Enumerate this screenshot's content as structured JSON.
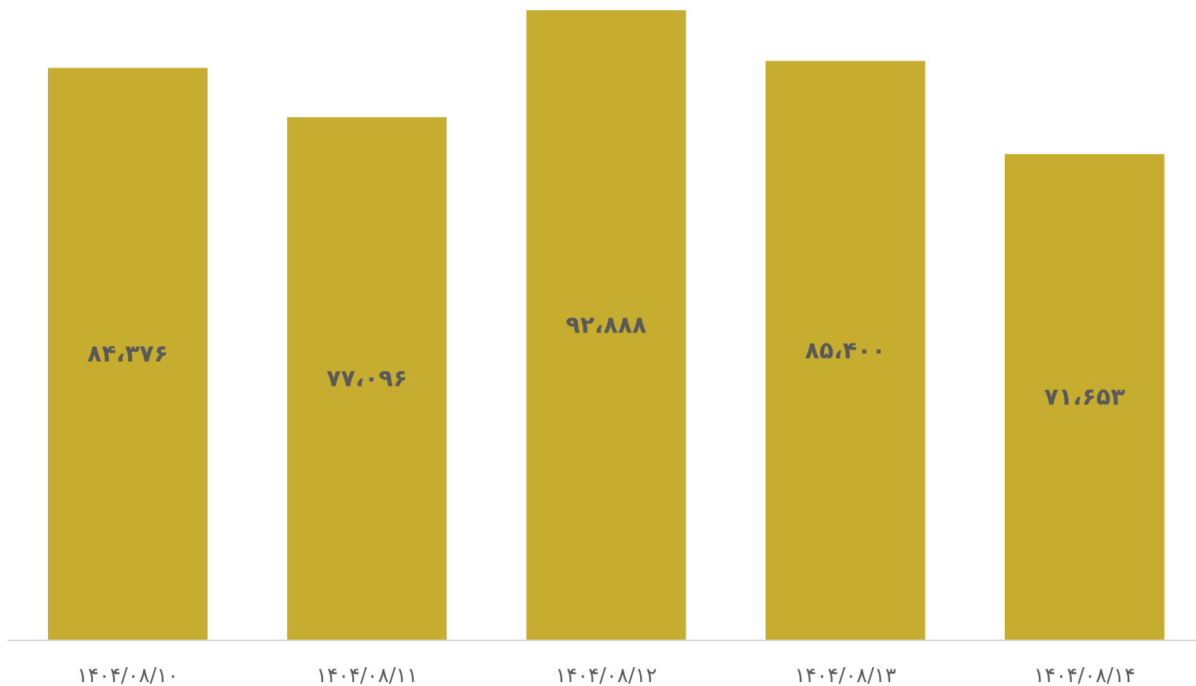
{
  "chart_data": {
    "type": "bar",
    "categories": [
      "۱۴۰۴/۰۸/۱۰",
      "۱۴۰۴/۰۸/۱۱",
      "۱۴۰۴/۰۸/۱۲",
      "۱۴۰۴/۰۸/۱۳",
      "۱۴۰۴/۰۸/۱۴"
    ],
    "values": [
      84376,
      77096,
      92888,
      85400,
      71653
    ],
    "value_labels": [
      "۸۴،۳۷۶",
      "۷۷،۰۹۶",
      "۹۲،۸۸۸",
      "۸۵،۴۰۰",
      "۷۱،۶۵۳"
    ],
    "ylim": [
      0,
      92888
    ],
    "grid": false,
    "legend": "none",
    "title": "",
    "xlabel": "",
    "ylabel": ""
  },
  "colors": {
    "bar": "#C6AD2F",
    "axis_line": "#D9D9D9",
    "label_text": "#595959"
  }
}
